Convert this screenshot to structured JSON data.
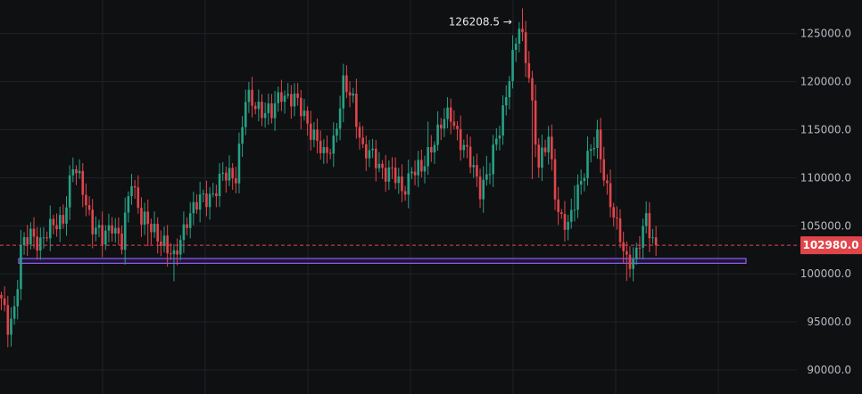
{
  "colors": {
    "background": "#0f1012",
    "grid": "#1f2226",
    "up": "#26a186",
    "down": "#e0454b",
    "axis_text": "#b5b8c0",
    "price_line": "#e0454b",
    "zone_border": "#8f5cf6",
    "zone_fill": "#2a1c4a"
  },
  "chart_data": {
    "type": "candlestick",
    "title": "",
    "xlabel": "",
    "ylabel": "",
    "ylim": [
      87500,
      128500
    ],
    "y_ticks": [
      90000,
      95000,
      100000,
      105000,
      110000,
      115000,
      120000,
      125000
    ],
    "y_tick_labels": [
      "90000.0",
      "95000.0",
      "100000.0",
      "105000.0",
      "110000.0",
      "115000.0",
      "120000.0",
      "125000.0"
    ],
    "grid": true,
    "current_price": 102980.0,
    "current_price_label": "102980.0",
    "peak_value": 126208.5,
    "peak_label": "126208.5",
    "support_zone": [
      101100,
      101600
    ],
    "candles": []
  }
}
